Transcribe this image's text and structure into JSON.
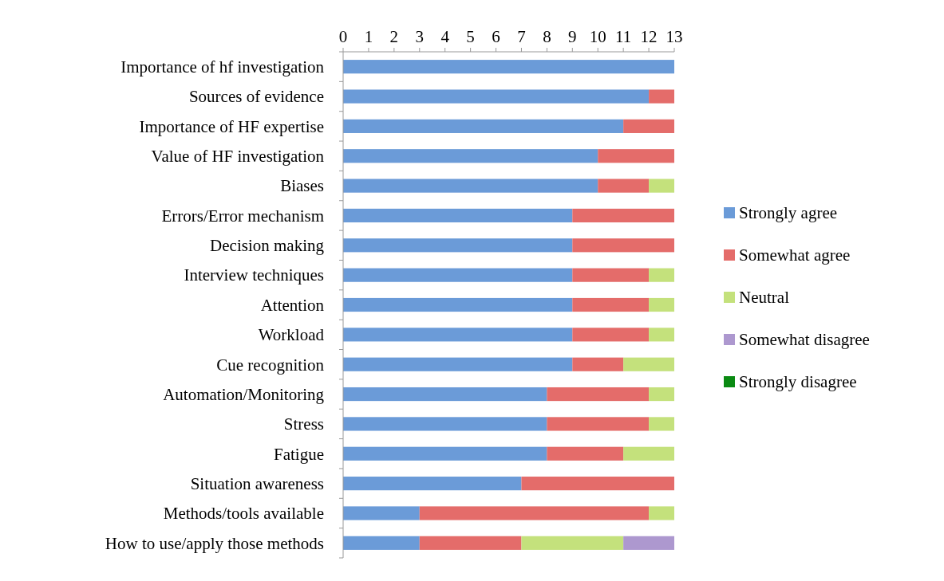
{
  "chart_data": {
    "type": "bar",
    "orientation": "horizontal",
    "stacked": true,
    "categories": [
      "Importance of hf investigation",
      "Sources of evidence",
      "Importance of HF expertise",
      "Value of HF investigation",
      "Biases",
      "Errors/Error mechanism",
      "Decision making",
      "Interview techniques",
      "Attention",
      "Workload",
      "Cue recognition ",
      "Automation/Monitoring",
      "Stress",
      "Fatigue",
      "Situation awareness",
      "Methods/tools available",
      "How to use/apply those methods"
    ],
    "series": [
      {
        "name": "Strongly agree",
        "color": "#6b9bd8",
        "values": [
          13,
          12,
          11,
          10,
          10,
          9,
          9,
          9,
          9,
          9,
          9,
          8,
          8,
          8,
          7,
          3,
          3
        ]
      },
      {
        "name": "Somewhat agree",
        "color": "#e46c6a",
        "values": [
          0,
          1,
          2,
          3,
          2,
          4,
          4,
          3,
          3,
          3,
          2,
          4,
          4,
          3,
          6,
          9,
          4
        ]
      },
      {
        "name": "Neutral",
        "color": "#c4e17c",
        "values": [
          0,
          0,
          0,
          0,
          1,
          0,
          0,
          1,
          1,
          1,
          2,
          1,
          1,
          2,
          0,
          1,
          4
        ]
      },
      {
        "name": "Somewhat disagree",
        "color": "#ad98cf",
        "values": [
          0,
          0,
          0,
          0,
          0,
          0,
          0,
          0,
          0,
          0,
          0,
          0,
          0,
          0,
          0,
          0,
          2
        ]
      },
      {
        "name": "Strongly disagree",
        "color": "#0a8a12",
        "values": [
          0,
          0,
          0,
          0,
          0,
          0,
          0,
          0,
          0,
          0,
          0,
          0,
          0,
          0,
          0,
          0,
          0
        ]
      }
    ],
    "xlim": [
      0,
      13
    ],
    "xticks": [
      0,
      1,
      2,
      3,
      4,
      5,
      6,
      7,
      8,
      9,
      10,
      11,
      12,
      13
    ],
    "legend": "right",
    "grid": false
  }
}
